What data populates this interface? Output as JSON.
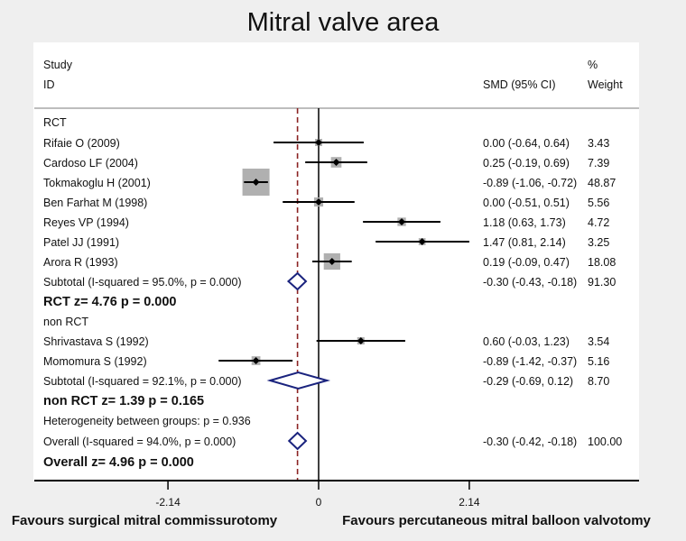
{
  "chart_data": {
    "type": "forest",
    "title": "Mitral valve area",
    "header": {
      "study_line1": "Study",
      "study_line2": "ID",
      "effect": "SMD (95% CI)",
      "weight_line1": "%",
      "weight_line2": "Weight"
    },
    "xaxis": {
      "ticks": [
        -2.14,
        0,
        2.14
      ],
      "tick_labels": [
        "-2.14",
        "0",
        "2.14"
      ],
      "range": [
        -4.08,
        4.52
      ]
    },
    "left_label": "Favours surgical mitral commissurotomy",
    "right_label": "Favours percutaneous mitral balloon valvotomy",
    "overall_effect_line": -0.3,
    "colors": {
      "diamond": "#1a237e",
      "dashed_line": "#8b2323",
      "box": "#b0b0b0"
    },
    "rows": [
      {
        "kind": "group",
        "label": "RCT"
      },
      {
        "kind": "study",
        "label": "Rifaie O (2009)",
        "est": 0.0,
        "lo": -0.64,
        "hi": 0.64,
        "ci_text": "0.00 (-0.64, 0.64)",
        "weight": 3.43,
        "weight_text": "3.43"
      },
      {
        "kind": "study",
        "label": "Cardoso LF (2004)",
        "est": 0.25,
        "lo": -0.19,
        "hi": 0.69,
        "ci_text": "0.25 (-0.19, 0.69)",
        "weight": 7.39,
        "weight_text": "7.39"
      },
      {
        "kind": "study",
        "label": "Tokmakoglu H (2001)",
        "est": -0.89,
        "lo": -1.06,
        "hi": -0.72,
        "ci_text": "-0.89 (-1.06, -0.72)",
        "weight": 48.87,
        "weight_text": "48.87"
      },
      {
        "kind": "study",
        "label": "Ben Farhat M (1998)",
        "est": 0.0,
        "lo": -0.51,
        "hi": 0.51,
        "ci_text": "0.00 (-0.51, 0.51)",
        "weight": 5.56,
        "weight_text": "5.56"
      },
      {
        "kind": "study",
        "label": "Reyes VP (1994)",
        "est": 1.18,
        "lo": 0.63,
        "hi": 1.73,
        "ci_text": "1.18 (0.63, 1.73)",
        "weight": 4.72,
        "weight_text": "4.72"
      },
      {
        "kind": "study",
        "label": "Patel JJ (1991)",
        "est": 1.47,
        "lo": 0.81,
        "hi": 2.14,
        "ci_text": "1.47 (0.81, 2.14)",
        "weight": 3.25,
        "weight_text": "3.25"
      },
      {
        "kind": "study",
        "label": "Arora R (1993)",
        "est": 0.19,
        "lo": -0.09,
        "hi": 0.47,
        "ci_text": "0.19 (-0.09, 0.47)",
        "weight": 18.08,
        "weight_text": "18.08"
      },
      {
        "kind": "subtotal",
        "label": "Subtotal  (I-squared = 95.0%, p = 0.000)",
        "est": -0.3,
        "lo": -0.43,
        "hi": -0.18,
        "ci_text": "-0.30 (-0.43, -0.18)",
        "weight_text": "91.30"
      },
      {
        "kind": "ztest",
        "label": "RCT  z=  4.76  p = 0.000"
      },
      {
        "kind": "group",
        "label": "non RCT"
      },
      {
        "kind": "study",
        "label": "Shrivastava S (1992)",
        "est": 0.6,
        "lo": -0.03,
        "hi": 1.23,
        "ci_text": "0.60 (-0.03, 1.23)",
        "weight": 3.54,
        "weight_text": "3.54"
      },
      {
        "kind": "study",
        "label": "Momomura S (1992)",
        "est": -0.89,
        "lo": -1.42,
        "hi": -0.37,
        "ci_text": "-0.89 (-1.42, -0.37)",
        "weight": 5.16,
        "weight_text": "5.16"
      },
      {
        "kind": "subtotal",
        "label": "Subtotal  (I-squared = 92.1%, p = 0.000)",
        "est": -0.29,
        "lo": -0.69,
        "hi": 0.12,
        "ci_text": "-0.29 (-0.69, 0.12)",
        "weight_text": "8.70"
      },
      {
        "kind": "ztest",
        "label": "non RCT  z=  1.39  p = 0.165"
      },
      {
        "kind": "group",
        "label": "Heterogeneity between groups: p = 0.936"
      },
      {
        "kind": "subtotal",
        "label": "Overall  (I-squared = 94.0%, p = 0.000)",
        "est": -0.3,
        "lo": -0.42,
        "hi": -0.18,
        "ci_text": "-0.30 (-0.42, -0.18)",
        "weight_text": "100.00"
      },
      {
        "kind": "ztest",
        "label": "Overall  z=  4.96  p = 0.000"
      }
    ]
  }
}
